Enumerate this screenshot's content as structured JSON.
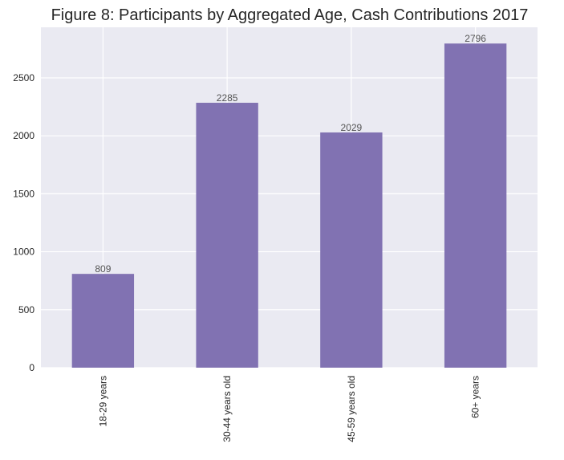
{
  "chart_data": {
    "type": "bar",
    "title": "Figure 8: Participants by Aggregated Age, Cash Contributions 2017",
    "xlabel": "",
    "ylabel": "",
    "categories": [
      "18-29 years",
      "30-44 years old",
      "45-59 years old",
      "60+ years"
    ],
    "values": [
      809,
      2285,
      2029,
      2796
    ],
    "data_labels": [
      "809",
      "2285",
      "2029",
      "2796"
    ],
    "ylim": [
      0,
      2936
    ],
    "yticks": [
      0,
      500,
      1000,
      1500,
      2000,
      2500
    ],
    "ytick_labels": [
      "0",
      "500",
      "1000",
      "1500",
      "2000",
      "2500"
    ],
    "grid": true,
    "legend": "none",
    "colors": {
      "bar": "#8172b2",
      "plot_background": "#eaeaf2",
      "grid": "#ffffff"
    }
  }
}
